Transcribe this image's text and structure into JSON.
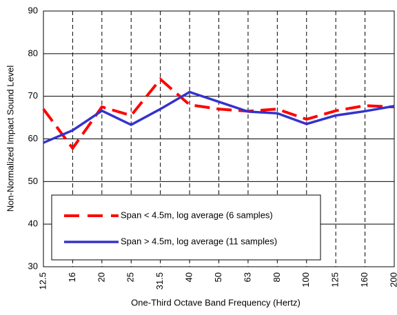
{
  "chart_data": {
    "type": "line",
    "x_label": "One-Third Octave Band Frequency (Hertz)",
    "y_label": "Non-Normalized Impact Sound Level",
    "categories": [
      "12.5",
      "16",
      "20",
      "25",
      "31.5",
      "40",
      "50",
      "63",
      "80",
      "100",
      "125",
      "160",
      "200"
    ],
    "series": [
      {
        "name": "Span < 4.5m, log average (6 samples)",
        "color": "#ff0000",
        "dash": true,
        "values": [
          67,
          57.8,
          67.5,
          65.5,
          74,
          68,
          67,
          66.5,
          67,
          64.6,
          66.6,
          67.8,
          67.5
        ]
      },
      {
        "name": "Span > 4.5m, log average (11 samples)",
        "color": "#3333cc",
        "dash": false,
        "values": [
          59.1,
          62,
          66.6,
          63.3,
          67,
          71,
          68.7,
          66.4,
          66,
          63.5,
          65.5,
          66.5,
          67.7
        ]
      }
    ],
    "ylim": [
      30,
      90
    ],
    "yticks": [
      30,
      40,
      50,
      60,
      70,
      80,
      90
    ],
    "grid": true,
    "legend": "lower left"
  }
}
